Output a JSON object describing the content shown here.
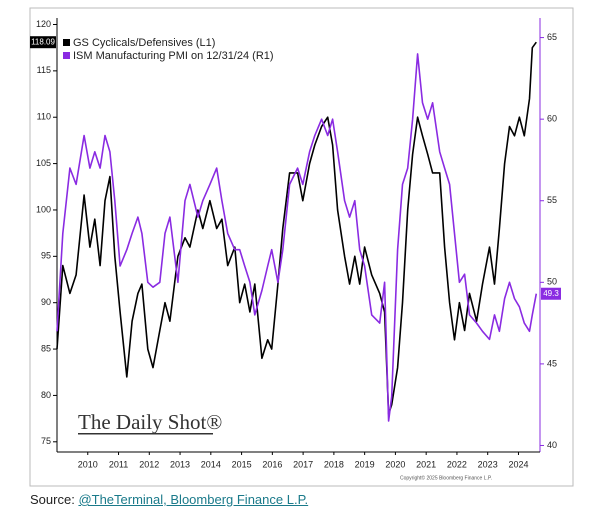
{
  "chart_data": {
    "type": "line",
    "x": [
      2009.5,
      2009.69,
      2009.92,
      2010.12,
      2010.38,
      2010.57,
      2010.73,
      2010.9,
      2011.06,
      2011.22,
      2011.38,
      2011.55,
      2011.77,
      2011.94,
      2012.13,
      2012.26,
      2012.45,
      2012.62,
      2012.84,
      2013.01,
      2013.17,
      2013.43,
      2013.66,
      2013.82,
      2014.08,
      2014.24,
      2014.47,
      2014.69,
      2014.86,
      2015.05,
      2015.28,
      2015.44,
      2015.6,
      2015.77,
      2015.93,
      2016.16,
      2016.35,
      2016.48,
      2016.68,
      2016.84,
      2017.06,
      2017.32,
      2017.49,
      2017.71,
      2017.88,
      2018.1,
      2018.3,
      2018.46,
      2018.62,
      2018.85,
      2019.01,
      2019.18,
      2019.34,
      2019.5,
      2019.73,
      2019.99,
      2020.15,
      2020.28,
      2020.38,
      2020.57,
      2020.73,
      2020.9,
      2021.06,
      2021.22,
      2021.38,
      2021.55,
      2021.71,
      2021.94,
      2022.1,
      2022.26,
      2022.42,
      2022.58,
      2022.75,
      2022.91,
      2023.14,
      2023.33,
      2023.56,
      2023.72,
      2023.88,
      2024.05,
      2024.21,
      2024.37,
      2024.53,
      2024.69,
      2024.86,
      2024.95,
      2025.08
    ],
    "series": [
      {
        "name": "GS Cyclicals/Defensives (L1)",
        "color": "#000000",
        "axis": "y",
        "end_label": "118.09",
        "values": [
          85,
          94,
          91,
          93,
          101.6,
          96,
          99,
          94,
          101,
          103.6,
          95,
          89,
          82,
          88,
          91,
          92,
          85,
          83,
          87,
          90,
          88,
          95,
          97,
          96,
          100,
          98,
          101,
          98,
          99,
          94,
          96,
          90,
          92,
          89,
          92,
          84,
          86,
          85,
          92,
          98,
          104,
          104,
          101,
          105,
          107,
          109,
          110,
          107,
          100,
          95,
          92,
          95,
          92,
          96,
          93,
          91,
          89,
          78,
          79,
          83,
          90,
          100,
          106,
          110,
          108,
          106,
          104,
          104,
          96,
          90,
          86,
          90,
          87,
          91,
          88,
          92,
          96,
          92,
          98,
          105,
          109,
          108,
          110,
          108,
          112,
          117.5,
          118.09
        ]
      },
      {
        "name": "ISM Manufacturing PMI on 12/31/24 (R1)",
        "color": "#8a2be2",
        "axis": "y2",
        "end_label": "49.3",
        "values": [
          47,
          53,
          57,
          56,
          59,
          57,
          58,
          57,
          59,
          58,
          55,
          51,
          52,
          53,
          54,
          53,
          50,
          49.7,
          50,
          53,
          54,
          50,
          55,
          56,
          54,
          55,
          56,
          57,
          55,
          53,
          52,
          52,
          51,
          50,
          48,
          49.5,
          51,
          52,
          50,
          52,
          56,
          57,
          56,
          58,
          59,
          60,
          59,
          60,
          58,
          55,
          54,
          55,
          52,
          51,
          48,
          47.5,
          50,
          41.5,
          43,
          52,
          56,
          57,
          60,
          64,
          61,
          60,
          61,
          58,
          57,
          56,
          53,
          50,
          50.5,
          48,
          47.5,
          47,
          46.5,
          48,
          47,
          49,
          50,
          49,
          48.5,
          47.5,
          47,
          48,
          49.3
        ]
      }
    ],
    "xlim": [
      2009.5,
      2025.2
    ],
    "xticks": [
      {
        "value": 2010.5,
        "label": "2010"
      },
      {
        "value": 2011.5,
        "label": "2011"
      },
      {
        "value": 2012.5,
        "label": "2012"
      },
      {
        "value": 2013.5,
        "label": "2013"
      },
      {
        "value": 2014.5,
        "label": "2014"
      },
      {
        "value": 2015.5,
        "label": "2015"
      },
      {
        "value": 2016.5,
        "label": "2016"
      },
      {
        "value": 2017.5,
        "label": "2017"
      },
      {
        "value": 2018.5,
        "label": "2018"
      },
      {
        "value": 2019.5,
        "label": "2019"
      },
      {
        "value": 2020.5,
        "label": "2020"
      },
      {
        "value": 2021.5,
        "label": "2021"
      },
      {
        "value": 2022.5,
        "label": "2022"
      },
      {
        "value": 2023.5,
        "label": "2023"
      },
      {
        "value": 2024.5,
        "label": "2024"
      }
    ],
    "ylim": [
      73.9,
      120.7
    ],
    "yticks": [
      75,
      80,
      85,
      90,
      95,
      100,
      105,
      110,
      115,
      120
    ],
    "y2lim": [
      39.6,
      66.2
    ],
    "y2ticks": [
      40,
      45,
      50,
      55,
      60,
      65
    ],
    "y2_color": "#8a2be2",
    "legend": "top-left",
    "watermark": "The Daily Shot®",
    "copyright": "Copyright© 2025 Bloomberg Finance L.P."
  },
  "source": {
    "prefix": "Source:",
    "link": "@TheTerminal, Bloomberg Finance L.P."
  }
}
